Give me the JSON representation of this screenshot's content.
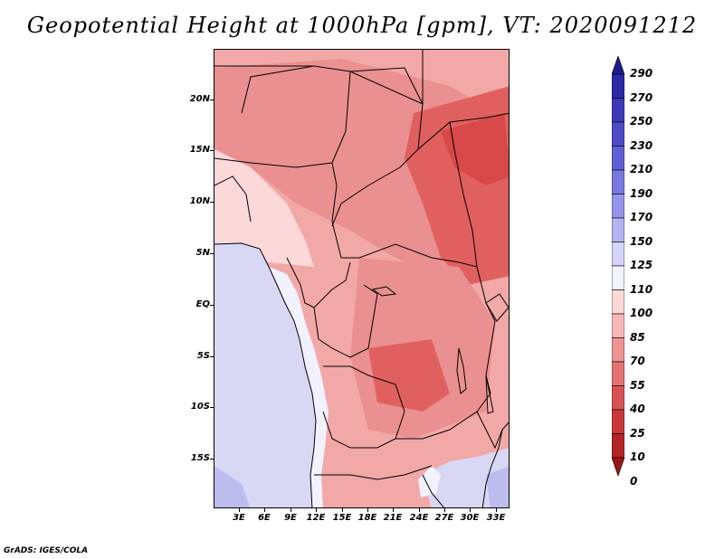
{
  "title": "Geopotential Height at 1000hPa [gpm], VT: 2020091212",
  "footer": "GrADS: IGES/COLA",
  "map": {
    "lat_ticks": [
      "20N",
      "15N",
      "10N",
      "5N",
      "EQ",
      "5S",
      "10S",
      "15S"
    ],
    "lon_ticks": [
      "3E",
      "6E",
      "9E",
      "12E",
      "15E",
      "18E",
      "21E",
      "24E",
      "27E",
      "30E",
      "33E"
    ],
    "fill_colors": {
      "ocean_south": "#d8d8f4",
      "ocean_deep": "#bcbcee",
      "ocean_near": "#f2f2ff",
      "coast_light": "#fdd8d8",
      "land_base": "#f3a8a8",
      "land_mid": "#ea9090",
      "land_high": "#e06060",
      "land_peak": "#d84848"
    }
  },
  "colorbar": {
    "labels": [
      "290",
      "270",
      "250",
      "230",
      "210",
      "190",
      "170",
      "150",
      "125",
      "110",
      "100",
      "85",
      "70",
      "55",
      "40",
      "25",
      "10",
      "0"
    ],
    "colors": [
      "#1c1c8c",
      "#2a2aa6",
      "#3a3ab8",
      "#4c4cc8",
      "#6060d6",
      "#7878e0",
      "#9494ea",
      "#b4b4f2",
      "#d4d4f8",
      "#f2f2ff",
      "#fdd8d8",
      "#f8b8b8",
      "#ee9494",
      "#e47474",
      "#d85454",
      "#c83838",
      "#b42424",
      "#9c1414"
    ]
  }
}
